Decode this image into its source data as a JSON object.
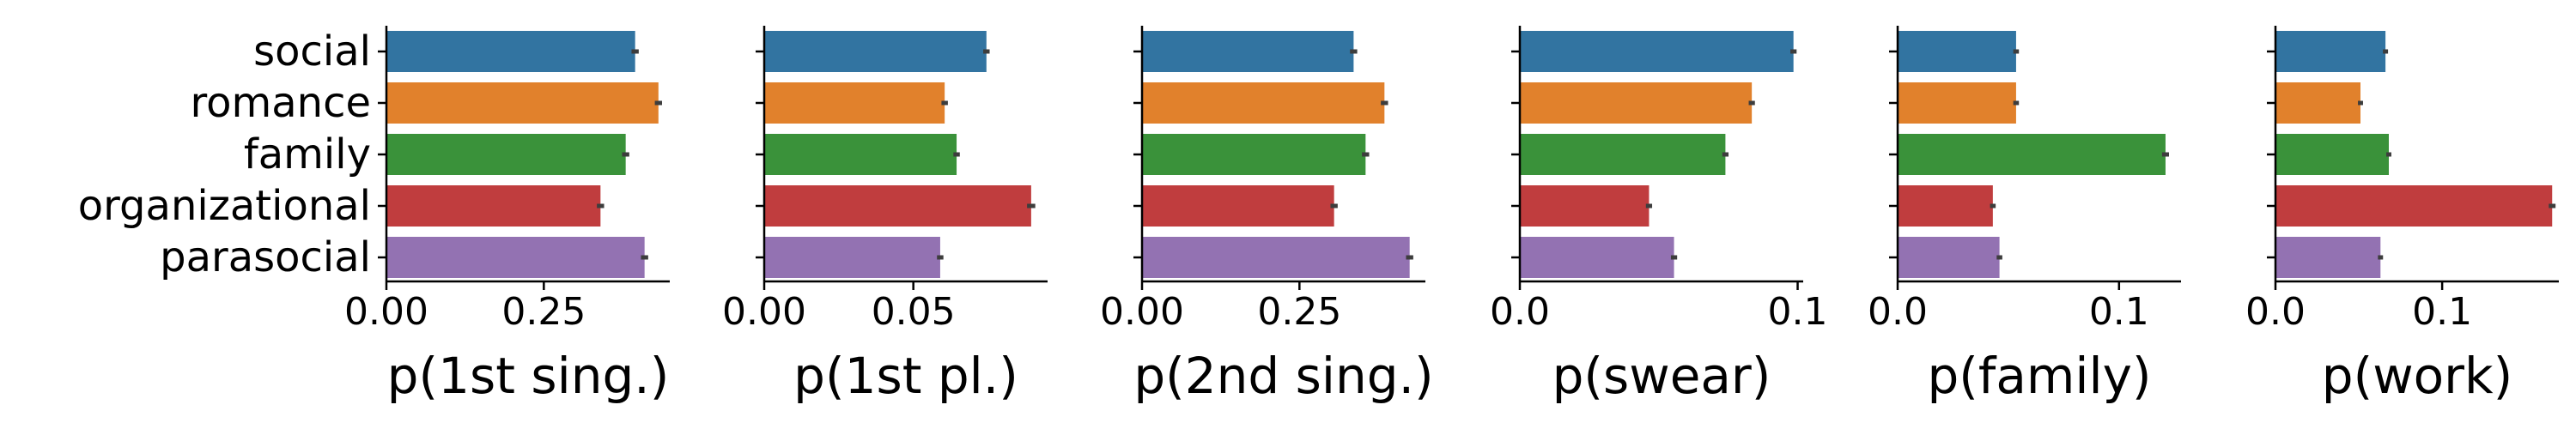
{
  "chart_data": [
    {
      "type": "bar",
      "orientation": "horizontal",
      "xlabel": "p(1st sing.)",
      "xlim": [
        0,
        0.45
      ],
      "xticks": [
        0.0,
        0.25
      ],
      "xtick_labels": [
        "0.00",
        "0.25"
      ],
      "categories": [
        "social",
        "romance",
        "family",
        "organizational",
        "parasocial"
      ],
      "values": [
        0.395,
        0.432,
        0.38,
        0.34,
        0.41
      ],
      "errors": [
        0.003,
        0.003,
        0.003,
        0.003,
        0.003
      ],
      "colors": [
        "#3274a1",
        "#e1812c",
        "#3a923a",
        "#c03d3e",
        "#9372b2"
      ]
    },
    {
      "type": "bar",
      "orientation": "horizontal",
      "xlabel": "p(1st pl.)",
      "xlim": [
        0,
        0.095
      ],
      "xticks": [
        0.0,
        0.05
      ],
      "xtick_labels": [
        "0.00",
        "0.05"
      ],
      "categories": [
        "social",
        "romance",
        "family",
        "organizational",
        "parasocial"
      ],
      "values": [
        0.0745,
        0.0605,
        0.0645,
        0.0895,
        0.059
      ],
      "errors": [
        0.0005,
        0.0005,
        0.0005,
        0.0008,
        0.0005
      ],
      "colors": [
        "#3274a1",
        "#e1812c",
        "#3a923a",
        "#c03d3e",
        "#9372b2"
      ]
    },
    {
      "type": "bar",
      "orientation": "horizontal",
      "xlabel": "p(2nd sing.)",
      "xlim": [
        0,
        0.45
      ],
      "xticks": [
        0.0,
        0.25
      ],
      "xtick_labels": [
        "0.00",
        "0.25"
      ],
      "categories": [
        "social",
        "romance",
        "family",
        "organizational",
        "parasocial"
      ],
      "values": [
        0.336,
        0.385,
        0.355,
        0.305,
        0.425
      ],
      "errors": [
        0.003,
        0.003,
        0.003,
        0.003,
        0.003
      ],
      "colors": [
        "#3274a1",
        "#e1812c",
        "#3a923a",
        "#c03d3e",
        "#9372b2"
      ]
    },
    {
      "type": "bar",
      "orientation": "horizontal",
      "xlabel": "p(swear)",
      "xlim": [
        0,
        0.102
      ],
      "xticks": [
        0.0,
        0.1
      ],
      "xtick_labels": [
        "0.0",
        "0.1"
      ],
      "categories": [
        "social",
        "romance",
        "family",
        "organizational",
        "parasocial"
      ],
      "values": [
        0.0985,
        0.0835,
        0.074,
        0.0465,
        0.0555
      ],
      "errors": [
        0.0005,
        0.0005,
        0.0005,
        0.0005,
        0.0005
      ],
      "colors": [
        "#3274a1",
        "#e1812c",
        "#3a923a",
        "#c03d3e",
        "#9372b2"
      ]
    },
    {
      "type": "bar",
      "orientation": "horizontal",
      "xlabel": "p(family)",
      "xlim": [
        0,
        0.128
      ],
      "xticks": [
        0.0,
        0.1
      ],
      "xtick_labels": [
        "0.0",
        "0.1"
      ],
      "categories": [
        "social",
        "romance",
        "family",
        "organizational",
        "parasocial"
      ],
      "values": [
        0.0535,
        0.0535,
        0.121,
        0.043,
        0.046
      ],
      "errors": [
        0.0005,
        0.0005,
        0.0008,
        0.0005,
        0.0005
      ],
      "colors": [
        "#3274a1",
        "#e1812c",
        "#3a923a",
        "#c03d3e",
        "#9372b2"
      ]
    },
    {
      "type": "bar",
      "orientation": "horizontal",
      "xlabel": "p(work)",
      "xlim": [
        0,
        0.17
      ],
      "xticks": [
        0.0,
        0.1
      ],
      "xtick_labels": [
        "0.0",
        "0.1"
      ],
      "categories": [
        "social",
        "romance",
        "family",
        "organizational",
        "parasocial"
      ],
      "values": [
        0.066,
        0.051,
        0.068,
        0.166,
        0.063
      ],
      "errors": [
        0.0005,
        0.0005,
        0.0005,
        0.001,
        0.0005
      ],
      "colors": [
        "#3274a1",
        "#e1812c",
        "#3a923a",
        "#c03d3e",
        "#9372b2"
      ]
    }
  ]
}
